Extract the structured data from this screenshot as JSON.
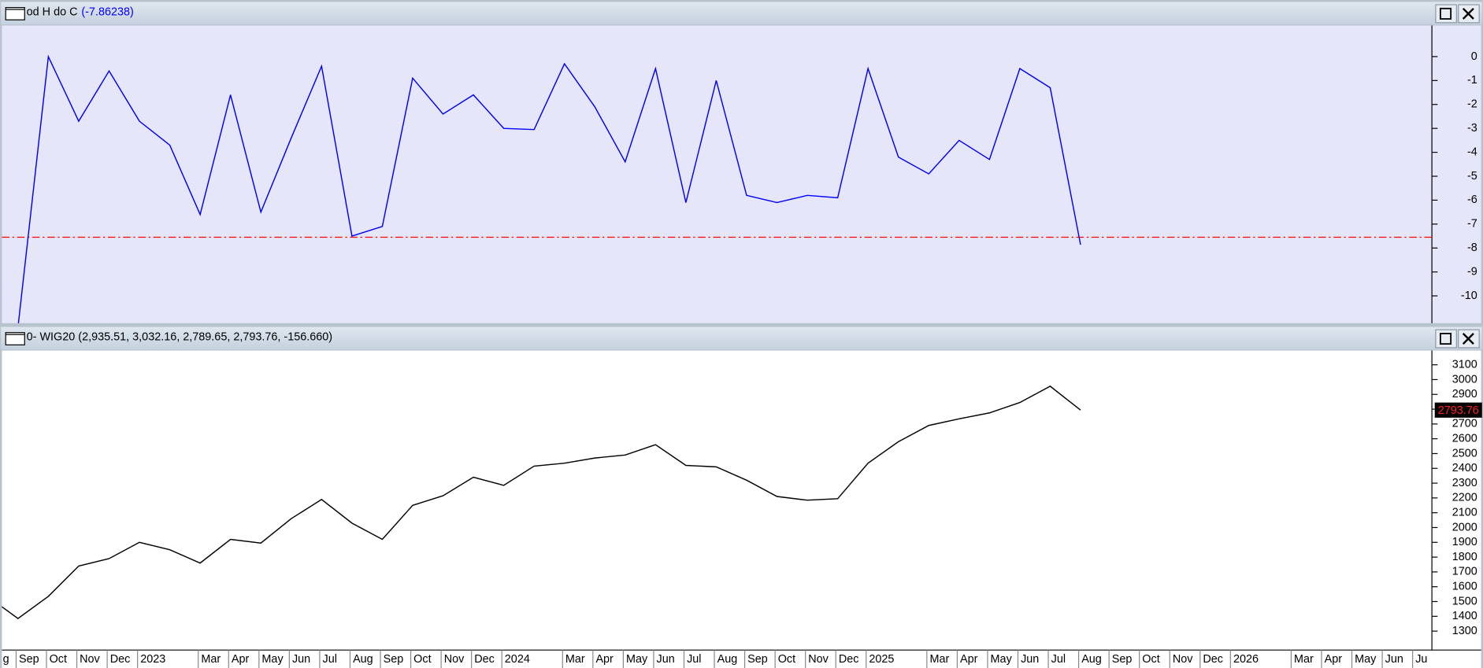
{
  "chart_data": [
    {
      "type": "line",
      "title": "od H do C",
      "title_value": "(-7.86238)",
      "series": [
        {
          "name": "od H do C",
          "color": "#0000ff",
          "values": [
            null,
            -11.3,
            0,
            -2.7,
            -0.6,
            -2.7,
            -3.7,
            -6.6,
            -1.6,
            -6.5,
            -3.4,
            -0.4,
            -7.5,
            -7.1,
            -0.9,
            -2.4,
            -1.6,
            -3.0,
            -3.05,
            -0.3,
            -2.1,
            -4.4,
            -0.5,
            -6.1,
            -1.0,
            -5.8,
            -6.1,
            -5.8,
            -5.9,
            -0.5,
            -4.2,
            -4.9,
            -3.5,
            -4.3,
            -0.5,
            -1.3,
            -7.86238,
            null,
            null,
            null,
            null,
            null,
            null,
            null,
            null,
            null,
            null,
            null
          ]
        }
      ],
      "hline": -7.55,
      "hline_color": "#ff0000",
      "ylim": [
        -11.1,
        1.26
      ],
      "yticks": [
        0,
        -1,
        -2,
        -3,
        -4,
        -5,
        -6,
        -7,
        -8,
        -9,
        -10
      ]
    },
    {
      "type": "line",
      "title": "0- WIG20 (2,935.51, 3,032.16, 2,789.65, 2,793.76, -156.660)",
      "categories": [
        "g",
        "Sep",
        "Oct",
        "Nov",
        "Dec",
        "2023",
        null,
        "Mar",
        "Apr",
        "May",
        "Jun",
        "Jul",
        "Aug",
        "Sep",
        "Oct",
        "Nov",
        "Dec",
        "2024",
        null,
        "Mar",
        "Apr",
        "May",
        "Jun",
        "Jul",
        "Aug",
        "Sep",
        "Oct",
        "Nov",
        "Dec",
        "2025",
        null,
        "Mar",
        "Apr",
        "May",
        "Jun",
        "Jul",
        "Aug",
        "Sep",
        "Oct",
        "Nov",
        "Dec",
        "2026",
        null,
        "Mar",
        "Apr",
        "May",
        "Jun",
        "Ju"
      ],
      "series": [
        {
          "name": "WIG20",
          "color": "#000000",
          "values": [
            1535,
            1385,
            1535,
            1740,
            1790,
            1900,
            1850,
            1760,
            1920,
            1895,
            2060,
            2190,
            2030,
            1920,
            2150,
            2215,
            2340,
            2285,
            2415,
            2435,
            2470,
            2490,
            2560,
            2420,
            2410,
            2320,
            2210,
            2185,
            2195,
            2435,
            2580,
            2690,
            2735,
            2775,
            2845,
            2955,
            2793.76,
            null,
            null,
            null,
            null,
            null,
            null,
            null,
            null,
            null,
            null,
            null
          ]
        }
      ],
      "last_value": 2793.76,
      "ylim": [
        1172,
        3190
      ],
      "yticks": [
        1300,
        1400,
        1500,
        1600,
        1700,
        1800,
        1900,
        2000,
        2100,
        2200,
        2300,
        2400,
        2500,
        2600,
        2700,
        2800,
        2900,
        3000,
        3100
      ]
    }
  ]
}
